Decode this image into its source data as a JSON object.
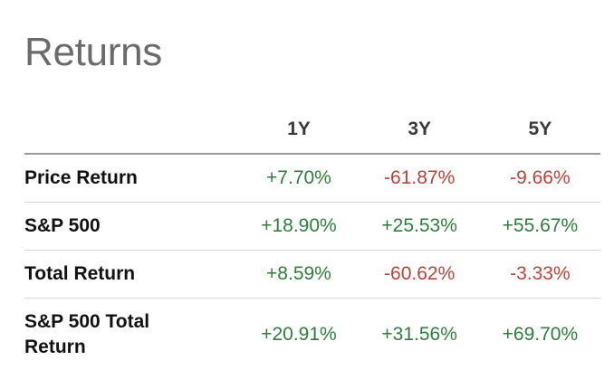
{
  "title": "Returns",
  "columns": [
    "1Y",
    "3Y",
    "5Y"
  ],
  "colors": {
    "positive": "#2e7d3e",
    "negative": "#b8433a",
    "title": "#6b6b6b"
  },
  "rows": [
    {
      "label": "Price Return",
      "values": [
        "+7.70%",
        "-61.87%",
        "-9.66%"
      ]
    },
    {
      "label": "S&P 500",
      "values": [
        "+18.90%",
        "+25.53%",
        "+55.67%"
      ]
    },
    {
      "label": "Total Return",
      "values": [
        "+8.59%",
        "-60.62%",
        "-3.33%"
      ]
    },
    {
      "label": "S&P 500 Total Return",
      "values": [
        "+20.91%",
        "+31.56%",
        "+69.70%"
      ]
    }
  ]
}
